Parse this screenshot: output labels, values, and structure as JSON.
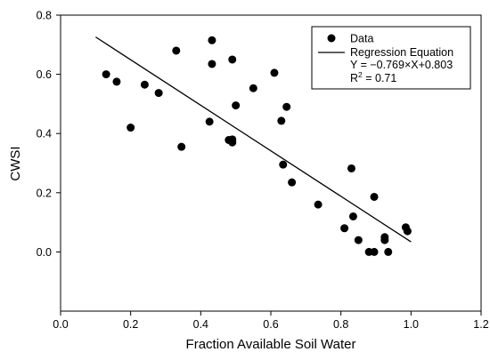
{
  "chart_data": {
    "type": "scatter",
    "xlabel": "Fraction Available Soil Water",
    "ylabel": "CWSI",
    "xlim": [
      0.0,
      1.2
    ],
    "ylim": [
      -0.2,
      0.8
    ],
    "xticks": [
      "0.0",
      "0.2",
      "0.4",
      "0.6",
      "0.8",
      "1.0",
      "1.2"
    ],
    "yticks": [
      "0.0",
      "0.2",
      "0.4",
      "0.6",
      "0.8"
    ],
    "grid": false,
    "legend_position": "top-right",
    "legend": {
      "data_label": "Data",
      "line_label": "Regression Equation",
      "equation": "Y = −0.769×X+0.803",
      "r2_prefix": "R",
      "r2_sup": "2",
      "r2_suffix": " = 0.71"
    },
    "regression": {
      "slope": -0.769,
      "intercept": 0.803,
      "x_range": [
        0.1,
        1.0
      ]
    },
    "points": [
      {
        "x": 0.13,
        "y": 0.6
      },
      {
        "x": 0.16,
        "y": 0.575
      },
      {
        "x": 0.2,
        "y": 0.42
      },
      {
        "x": 0.24,
        "y": 0.565
      },
      {
        "x": 0.28,
        "y": 0.537
      },
      {
        "x": 0.33,
        "y": 0.68
      },
      {
        "x": 0.345,
        "y": 0.355
      },
      {
        "x": 0.425,
        "y": 0.44
      },
      {
        "x": 0.432,
        "y": 0.715
      },
      {
        "x": 0.432,
        "y": 0.635
      },
      {
        "x": 0.48,
        "y": 0.378
      },
      {
        "x": 0.49,
        "y": 0.37
      },
      {
        "x": 0.49,
        "y": 0.38
      },
      {
        "x": 0.49,
        "y": 0.65
      },
      {
        "x": 0.5,
        "y": 0.495
      },
      {
        "x": 0.55,
        "y": 0.553
      },
      {
        "x": 0.61,
        "y": 0.605
      },
      {
        "x": 0.63,
        "y": 0.443
      },
      {
        "x": 0.635,
        "y": 0.295
      },
      {
        "x": 0.645,
        "y": 0.49
      },
      {
        "x": 0.66,
        "y": 0.235
      },
      {
        "x": 0.735,
        "y": 0.16
      },
      {
        "x": 0.81,
        "y": 0.08
      },
      {
        "x": 0.83,
        "y": 0.282
      },
      {
        "x": 0.835,
        "y": 0.12
      },
      {
        "x": 0.85,
        "y": 0.04
      },
      {
        "x": 0.88,
        "y": 0.0
      },
      {
        "x": 0.895,
        "y": 0.0
      },
      {
        "x": 0.895,
        "y": 0.186
      },
      {
        "x": 0.925,
        "y": 0.04
      },
      {
        "x": 0.925,
        "y": 0.05
      },
      {
        "x": 0.935,
        "y": 0.0
      },
      {
        "x": 0.985,
        "y": 0.083
      },
      {
        "x": 0.99,
        "y": 0.07
      }
    ]
  }
}
